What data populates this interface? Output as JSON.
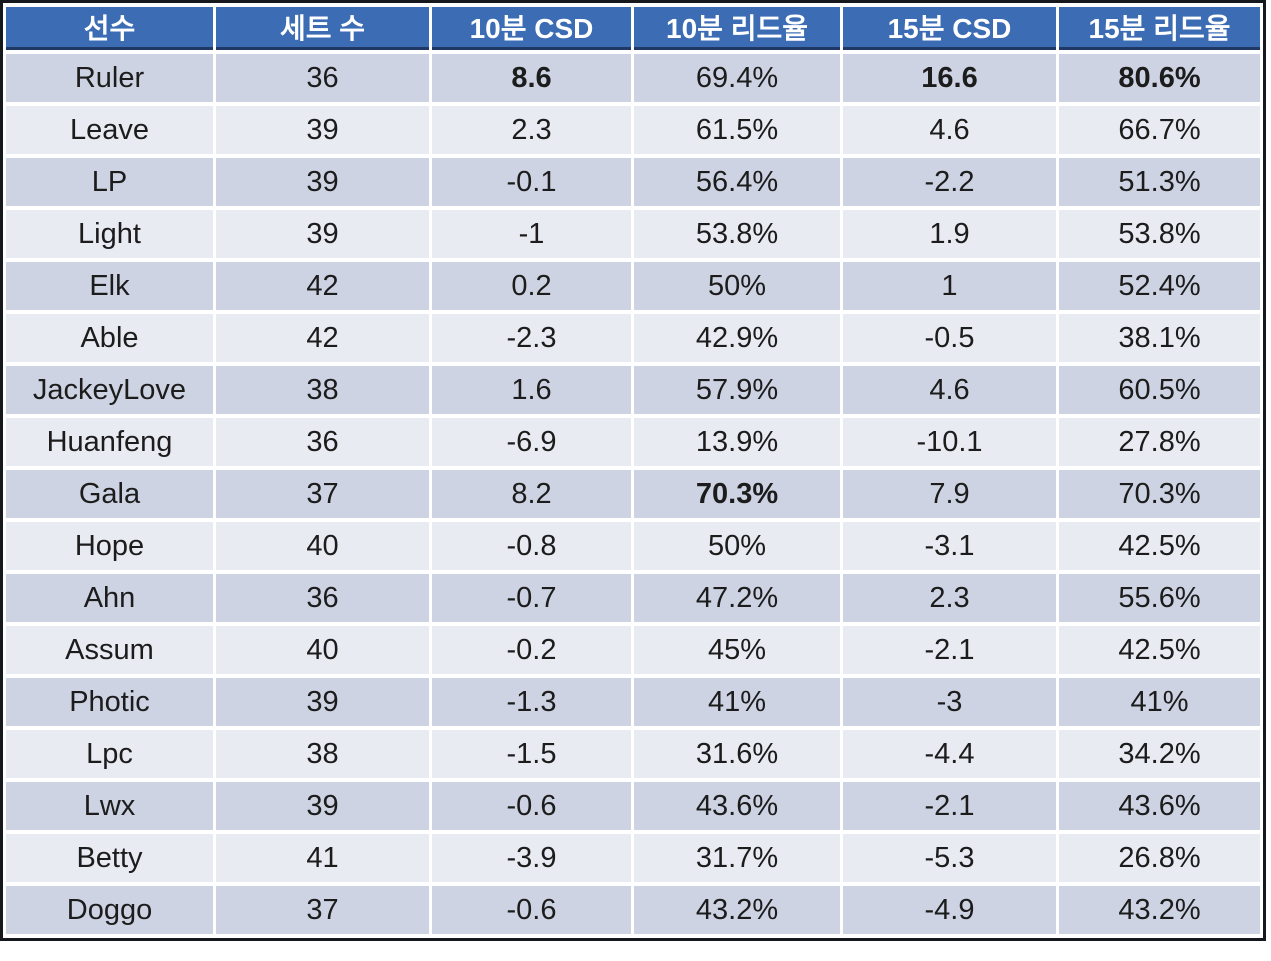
{
  "chart_data": {
    "type": "table",
    "columns": [
      {
        "key": "player",
        "label": "선수"
      },
      {
        "key": "sets",
        "label": "세트 수"
      },
      {
        "key": "csd10",
        "label": "10분 CSD"
      },
      {
        "key": "lead10",
        "label": "10분 리드율"
      },
      {
        "key": "csd15",
        "label": "15분 CSD"
      },
      {
        "key": "lead15",
        "label": "15분 리드율"
      }
    ],
    "rows": [
      {
        "player": "Ruler",
        "sets": "36",
        "csd10": "8.6",
        "lead10": "69.4%",
        "csd15": "16.6",
        "lead15": "80.6%",
        "bold": [
          "csd10",
          "csd15",
          "lead15"
        ]
      },
      {
        "player": "Leave",
        "sets": "39",
        "csd10": "2.3",
        "lead10": "61.5%",
        "csd15": "4.6",
        "lead15": "66.7%",
        "bold": []
      },
      {
        "player": "LP",
        "sets": "39",
        "csd10": "-0.1",
        "lead10": "56.4%",
        "csd15": "-2.2",
        "lead15": "51.3%",
        "bold": []
      },
      {
        "player": "Light",
        "sets": "39",
        "csd10": "-1",
        "lead10": "53.8%",
        "csd15": "1.9",
        "lead15": "53.8%",
        "bold": []
      },
      {
        "player": "Elk",
        "sets": "42",
        "csd10": "0.2",
        "lead10": "50%",
        "csd15": "1",
        "lead15": "52.4%",
        "bold": []
      },
      {
        "player": "Able",
        "sets": "42",
        "csd10": "-2.3",
        "lead10": "42.9%",
        "csd15": "-0.5",
        "lead15": "38.1%",
        "bold": []
      },
      {
        "player": "JackeyLove",
        "sets": "38",
        "csd10": "1.6",
        "lead10": "57.9%",
        "csd15": "4.6",
        "lead15": "60.5%",
        "bold": []
      },
      {
        "player": "Huanfeng",
        "sets": "36",
        "csd10": "-6.9",
        "lead10": "13.9%",
        "csd15": "-10.1",
        "lead15": "27.8%",
        "bold": []
      },
      {
        "player": "Gala",
        "sets": "37",
        "csd10": "8.2",
        "lead10": "70.3%",
        "csd15": "7.9",
        "lead15": "70.3%",
        "bold": [
          "lead10"
        ]
      },
      {
        "player": "Hope",
        "sets": "40",
        "csd10": "-0.8",
        "lead10": "50%",
        "csd15": "-3.1",
        "lead15": "42.5%",
        "bold": []
      },
      {
        "player": "Ahn",
        "sets": "36",
        "csd10": "-0.7",
        "lead10": "47.2%",
        "csd15": "2.3",
        "lead15": "55.6%",
        "bold": []
      },
      {
        "player": "Assum",
        "sets": "40",
        "csd10": "-0.2",
        "lead10": "45%",
        "csd15": "-2.1",
        "lead15": "42.5%",
        "bold": []
      },
      {
        "player": "Photic",
        "sets": "39",
        "csd10": "-1.3",
        "lead10": "41%",
        "csd15": "-3",
        "lead15": "41%",
        "bold": []
      },
      {
        "player": "Lpc",
        "sets": "38",
        "csd10": "-1.5",
        "lead10": "31.6%",
        "csd15": "-4.4",
        "lead15": "34.2%",
        "bold": []
      },
      {
        "player": "Lwx",
        "sets": "39",
        "csd10": "-0.6",
        "lead10": "43.6%",
        "csd15": "-2.1",
        "lead15": "43.6%",
        "bold": []
      },
      {
        "player": "Betty",
        "sets": "41",
        "csd10": "-3.9",
        "lead10": "31.7%",
        "csd15": "-5.3",
        "lead15": "26.8%",
        "bold": []
      },
      {
        "player": "Doggo",
        "sets": "37",
        "csd10": "-0.6",
        "lead10": "43.2%",
        "csd15": "-4.9",
        "lead15": "43.2%",
        "bold": []
      }
    ],
    "colors": {
      "header_bg": "#3b6cb4",
      "header_text": "#ffffff",
      "header_border": "#1f3864",
      "row_dark": "#cdd3e2",
      "row_light": "#e9ebf3",
      "gridline": "#ffffff",
      "outer_border": "#15181d",
      "cell_text": "#1c1c1c"
    }
  }
}
